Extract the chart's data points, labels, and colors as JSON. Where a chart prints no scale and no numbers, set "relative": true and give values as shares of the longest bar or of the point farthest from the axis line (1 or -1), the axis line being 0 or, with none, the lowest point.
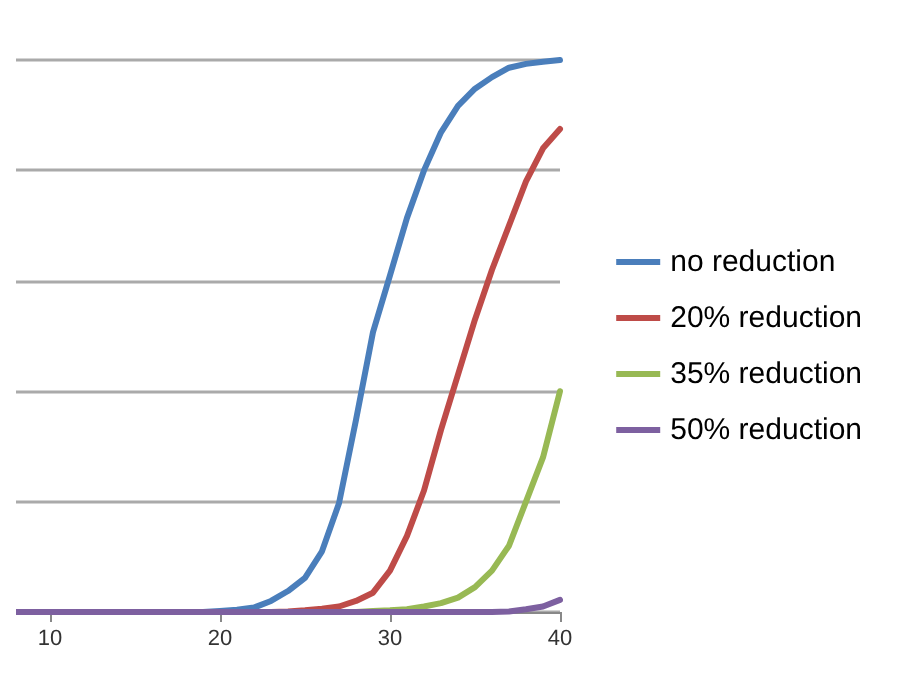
{
  "chart_data": {
    "type": "line",
    "relative": true,
    "x": [
      8,
      9,
      10,
      11,
      12,
      13,
      14,
      15,
      16,
      17,
      18,
      19,
      20,
      21,
      22,
      23,
      24,
      25,
      26,
      27,
      28,
      29,
      30,
      31,
      32,
      33,
      34,
      35,
      36,
      37,
      38,
      39,
      40
    ],
    "xlim": [
      8,
      40
    ],
    "xticks": [
      10,
      20,
      30,
      40
    ],
    "grid": "y",
    "legend": "right",
    "marker": "none",
    "line_style": "solid",
    "series": [
      {
        "name": "no reduction",
        "color": "#4a7ebb",
        "values": [
          null,
          null,
          null,
          null,
          null,
          null,
          null,
          null,
          null,
          null,
          0,
          0,
          0.002,
          0.004,
          0.008,
          0.02,
          0.038,
          0.062,
          0.11,
          0.197,
          0.348,
          0.507,
          0.61,
          0.714,
          0.8,
          0.869,
          0.917,
          0.948,
          0.969,
          0.986,
          0.993,
          0.997,
          1
        ]
      },
      {
        "name": "20% reduction",
        "color": "#be4b48",
        "values": [
          null,
          null,
          null,
          null,
          null,
          null,
          null,
          null,
          null,
          null,
          null,
          null,
          null,
          null,
          null,
          0,
          0.001,
          0.003,
          0.006,
          0.01,
          0.02,
          0.035,
          0.075,
          0.138,
          0.22,
          0.33,
          0.43,
          0.53,
          0.62,
          0.7,
          0.78,
          0.84,
          0.875
        ]
      },
      {
        "name": "35% reduction",
        "color": "#98b954",
        "values": [
          null,
          null,
          null,
          null,
          null,
          null,
          null,
          null,
          null,
          null,
          null,
          null,
          null,
          null,
          null,
          null,
          null,
          null,
          null,
          null,
          0,
          0.002,
          0.003,
          0.005,
          0.01,
          0.016,
          0.026,
          0.045,
          0.075,
          0.12,
          0.2,
          0.28,
          0.4
        ]
      },
      {
        "name": "50% reduction",
        "color": "#7d60a0",
        "values": [
          0,
          0,
          0,
          0,
          0,
          0,
          0,
          0,
          0,
          0,
          0,
          0,
          0,
          0,
          0,
          0,
          0,
          0,
          0,
          0,
          0,
          0,
          0,
          0,
          0,
          0,
          0,
          0,
          0,
          0.001,
          0.005,
          0.01,
          0.022
        ]
      }
    ]
  }
}
